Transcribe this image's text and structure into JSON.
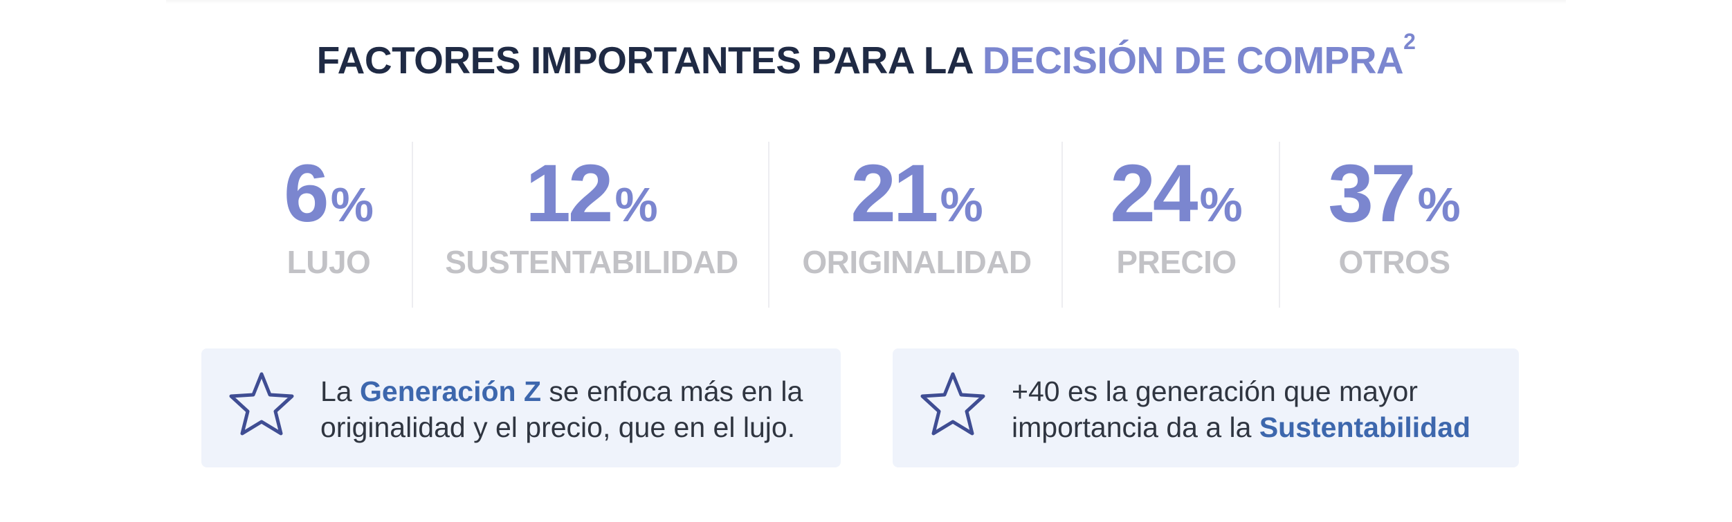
{
  "title": {
    "part_dark": "FACTORES IMPORTANTES PARA LA ",
    "part_accent": "DECISIÓN DE COMPRA",
    "superscript": "2"
  },
  "stats": [
    {
      "value": "6",
      "unit": "%",
      "label": "LUJO"
    },
    {
      "value": "12",
      "unit": "%",
      "label": "SUSTENTABILIDAD"
    },
    {
      "value": "21",
      "unit": "%",
      "label": "ORIGINALIDAD"
    },
    {
      "value": "24",
      "unit": "%",
      "label": "PRECIO"
    },
    {
      "value": "37",
      "unit": "%",
      "label": "OTROS"
    }
  ],
  "cards": [
    {
      "icon": "star-icon",
      "line1_pre": "La ",
      "line1_highlight": "Generación Z",
      "line1_post": " se enfoca más en la",
      "line2": "originalidad y el precio, que en el lujo."
    },
    {
      "icon": "star-icon",
      "line1": "+40 es la generación que mayor",
      "line2_pre": "importancia da a la ",
      "line2_highlight": "Sustentabilidad"
    }
  ],
  "colors": {
    "title_dark": "#1f2a44",
    "accent": "#7b86cf",
    "label_gray": "#c2c2c6",
    "card_bg": "#eff3fb",
    "highlight_blue": "#3d67ad",
    "star_stroke": "#3f4d93"
  }
}
